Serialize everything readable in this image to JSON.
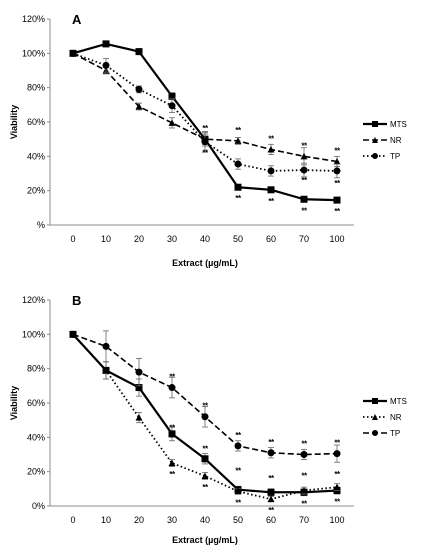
{
  "chart_data": [
    {
      "panel": "A",
      "type": "line",
      "x": [
        0,
        10,
        20,
        30,
        40,
        50,
        60,
        70,
        100
      ],
      "xlabel": "Extract (µg/mL)",
      "ylabel": "Viability",
      "ylim": [
        0,
        120
      ],
      "yticks": [
        "%",
        "20%",
        "40%",
        "60%",
        "80%",
        "100%",
        "120%"
      ],
      "legend_position": "right",
      "series": [
        {
          "name": "MTS",
          "style": "solid",
          "marker": "square",
          "values": [
            100,
            105.5,
            101,
            75,
            50,
            22,
            20.5,
            15,
            14.5
          ],
          "errors": [
            0,
            1,
            1,
            2,
            3,
            1.5,
            1.5,
            1.5,
            1.5
          ]
        },
        {
          "name": "NR",
          "style": "dashed",
          "marker": "triangle",
          "values": [
            100,
            90,
            69,
            59.5,
            50,
            49,
            44,
            40,
            37
          ],
          "errors": [
            0,
            2,
            2,
            3,
            4,
            2,
            3,
            5,
            3
          ]
        },
        {
          "name": "TP",
          "style": "dotted",
          "marker": "circle",
          "values": [
            100,
            93,
            79,
            69.5,
            48.5,
            35.5,
            31.5,
            32,
            31.5
          ],
          "errors": [
            0,
            4,
            2,
            4,
            6,
            3,
            3,
            4,
            4
          ]
        }
      ],
      "significance": [
        "",
        "",
        "",
        "",
        "**\n**\n**",
        "**\n**\n**",
        "**\n**\n**",
        "**\n**\n**",
        "**\n**\n**"
      ]
    },
    {
      "panel": "B",
      "type": "line",
      "x": [
        0,
        10,
        20,
        30,
        40,
        50,
        60,
        70,
        100
      ],
      "xlabel": "Extract (µg/mL)",
      "ylabel": "Viability",
      "ylim": [
        0,
        120
      ],
      "yticks": [
        "0%",
        "20%",
        "40%",
        "60%",
        "80%",
        "100%",
        "120%"
      ],
      "legend_position": "right",
      "series": [
        {
          "name": "MTS",
          "style": "solid",
          "marker": "square",
          "values": [
            100,
            79,
            69,
            42,
            27.5,
            9.5,
            8,
            8,
            9
          ],
          "errors": [
            0,
            5,
            5,
            4,
            3,
            2,
            2,
            2,
            2
          ]
        },
        {
          "name": "NR",
          "style": "dotted",
          "marker": "triangle",
          "values": [
            100,
            79,
            51.5,
            25,
            17.5,
            8.5,
            4,
            9,
            11
          ],
          "errors": [
            0,
            5,
            3,
            2,
            2,
            1.5,
            1.5,
            2,
            2
          ]
        },
        {
          "name": "TP",
          "style": "dashed",
          "marker": "circle",
          "values": [
            100,
            93,
            78,
            69,
            52,
            35,
            31,
            30,
            30.5
          ],
          "errors": [
            0,
            9,
            8,
            6,
            6,
            3,
            3,
            3,
            5
          ]
        }
      ],
      "significance": [
        "",
        "",
        "",
        "**\n**\n**",
        "**\n**\n**",
        "**\n**\n**",
        "**\n**\n**",
        "**\n**\n**",
        "**\n**\n**"
      ]
    }
  ]
}
